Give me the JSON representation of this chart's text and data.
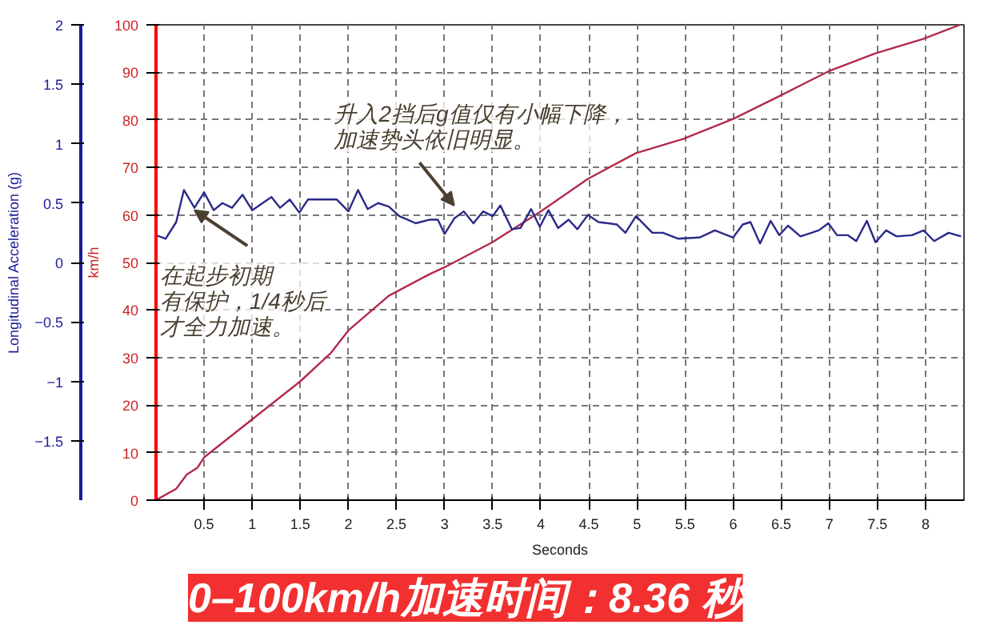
{
  "chart_data": {
    "type": "line",
    "title": "0–100km/h加速时间：8.36 秒",
    "xlabel": "Seconds",
    "ylabel": "km/h",
    "y2label": "Longitudinal Acceleration (g)",
    "xlim": [
      0,
      8.4
    ],
    "xticks": [
      0.5,
      1,
      1.5,
      2,
      2.5,
      3,
      3.5,
      4,
      4.5,
      5,
      5.5,
      6,
      6.5,
      7,
      7.5,
      8
    ],
    "ylim": [
      0,
      100
    ],
    "yticks": [
      0,
      10,
      20,
      30,
      40,
      50,
      60,
      70,
      80,
      90,
      100
    ],
    "y2lim": [
      -2,
      2
    ],
    "y2ticks": [
      -1.5,
      -1,
      -0.5,
      0,
      0.5,
      1,
      1.5,
      2
    ],
    "grid": true,
    "line_style": "solid",
    "annotations": [
      "升入2挡后g值仅有小幅下降，加速势头依旧明显。",
      {
        "text": "在起步初期有保护，1/4秒后才全力加速。",
        "x": 0.4,
        "y": 61
      }
    ],
    "series": [
      {
        "color": "#b22a4a",
        "x": [
          0,
          0.21,
          0.32,
          0.43,
          0.5,
          1.0,
          1.5,
          1.82,
          2.0,
          2.42,
          2.84,
          3.0,
          3.5,
          3.99,
          4.49,
          4.99,
          5.48,
          6.0,
          6.48,
          6.99,
          7.48,
          7.97,
          8.36
        ],
        "values": [
          0,
          2.4,
          5.4,
          6.8,
          9,
          17,
          25,
          31,
          35.7,
          43,
          47.5,
          49,
          54.3,
          60.6,
          67.6,
          73,
          76,
          80.2,
          85,
          90.2,
          94,
          97,
          100
        ]
      },
      {
        "color": "#2a2a8a",
        "axis": "y2",
        "x": [
          0,
          0.1,
          0.21,
          0.29,
          0.4,
          0.5,
          0.6,
          0.69,
          0.79,
          0.9,
          1.0,
          1.2,
          1.29,
          1.39,
          1.49,
          1.58,
          1.88,
          2.0,
          2.1,
          2.2,
          2.31,
          2.42,
          2.53,
          2.7,
          2.84,
          2.93,
          3.0,
          3.1,
          3.2,
          3.3,
          3.4,
          3.5,
          3.58,
          3.7,
          3.79,
          3.9,
          3.99,
          4.08,
          4.18,
          4.29,
          4.38,
          4.49,
          4.6,
          4.79,
          4.88,
          4.99,
          5.16,
          5.27,
          5.43,
          5.65,
          5.81,
          6.0,
          6.1,
          6.18,
          6.28,
          6.39,
          6.48,
          6.57,
          6.7,
          6.89,
          6.99,
          7.08,
          7.19,
          7.28,
          7.39,
          7.48,
          7.59,
          7.7,
          7.86,
          7.98,
          8.09,
          8.24,
          8.37
        ],
        "values": [
          0.23,
          0.2,
          0.34,
          0.61,
          0.46,
          0.59,
          0.44,
          0.5,
          0.46,
          0.57,
          0.44,
          0.55,
          0.46,
          0.53,
          0.42,
          0.53,
          0.53,
          0.43,
          0.61,
          0.45,
          0.5,
          0.47,
          0.39,
          0.33,
          0.36,
          0.36,
          0.24,
          0.37,
          0.43,
          0.33,
          0.43,
          0.39,
          0.48,
          0.28,
          0.29,
          0.45,
          0.3,
          0.44,
          0.29,
          0.36,
          0.28,
          0.4,
          0.34,
          0.32,
          0.25,
          0.39,
          0.25,
          0.25,
          0.2,
          0.21,
          0.27,
          0.21,
          0.32,
          0.34,
          0.16,
          0.35,
          0.23,
          0.31,
          0.22,
          0.27,
          0.33,
          0.23,
          0.23,
          0.18,
          0.35,
          0.17,
          0.27,
          0.22,
          0.23,
          0.27,
          0.18,
          0.25,
          0.22
        ]
      }
    ]
  }
}
